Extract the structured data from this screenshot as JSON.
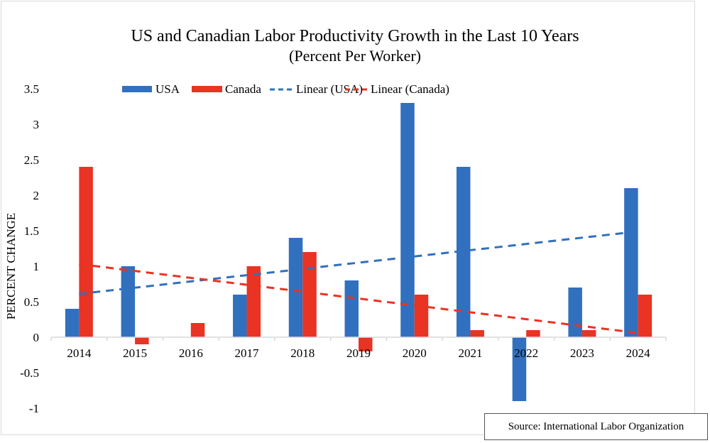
{
  "chart_data": {
    "type": "bar",
    "title": "US and Canadian Labor Productivity Growth in the Last 10 Years",
    "subtitle": "(Percent Per Worker)",
    "xlabel": "",
    "ylabel": "PERCENT CHANGE",
    "categories": [
      "2014",
      "2015",
      "2016",
      "2017",
      "2018",
      "2019",
      "2020",
      "2021",
      "2022",
      "2023",
      "2024"
    ],
    "series": [
      {
        "name": "USA",
        "color": "#3170be",
        "values": [
          0.4,
          1.0,
          0,
          0.6,
          1.4,
          0.8,
          3.3,
          2.4,
          -0.9,
          0.7,
          2.1
        ]
      },
      {
        "name": "Canada",
        "color": "#e93323",
        "values": [
          2.4,
          -0.1,
          0.2,
          1.0,
          1.2,
          -0.2,
          0.6,
          0.1,
          0.1,
          0.1,
          0.6
        ]
      }
    ],
    "trendlines": [
      {
        "name": "Linear (USA)",
        "of": "USA",
        "color": "#3170be",
        "style": "dashed",
        "start": 0.61,
        "end": 1.49
      },
      {
        "name": "Linear (Canada)",
        "of": "Canada",
        "color": "#e93323",
        "style": "dashed",
        "start": 1.03,
        "end": 0.06
      }
    ],
    "ylim": [
      -1,
      3.5
    ],
    "yticks": [
      "3.5",
      "3",
      "2.5",
      "2",
      "1.5",
      "1",
      "0.5",
      "0",
      "-0.5",
      "-1"
    ],
    "ytick_values": [
      3.5,
      3,
      2.5,
      2,
      1.5,
      1,
      0.5,
      0,
      -0.5,
      -1
    ],
    "legend_position": "top",
    "grid": false,
    "source": "Source: International Labor Organization"
  }
}
